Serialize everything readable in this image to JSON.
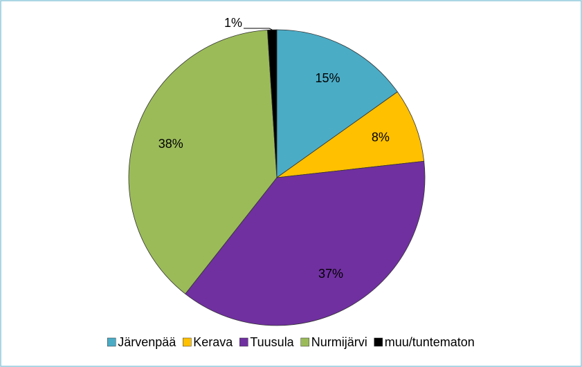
{
  "chart_data": {
    "type": "pie",
    "categories": [
      "Järvenpää",
      "Kerava",
      "Tuusula",
      "Nurmijärvi",
      "muu/tuntematon"
    ],
    "values": [
      15,
      8,
      37,
      38,
      1
    ],
    "value_labels": [
      "15%",
      "8%",
      "37%",
      "38%",
      "1%"
    ],
    "colors": [
      "#4bacc6",
      "#ffc000",
      "#7030a0",
      "#9bbb59",
      "#000000"
    ],
    "legend": "bottom"
  }
}
